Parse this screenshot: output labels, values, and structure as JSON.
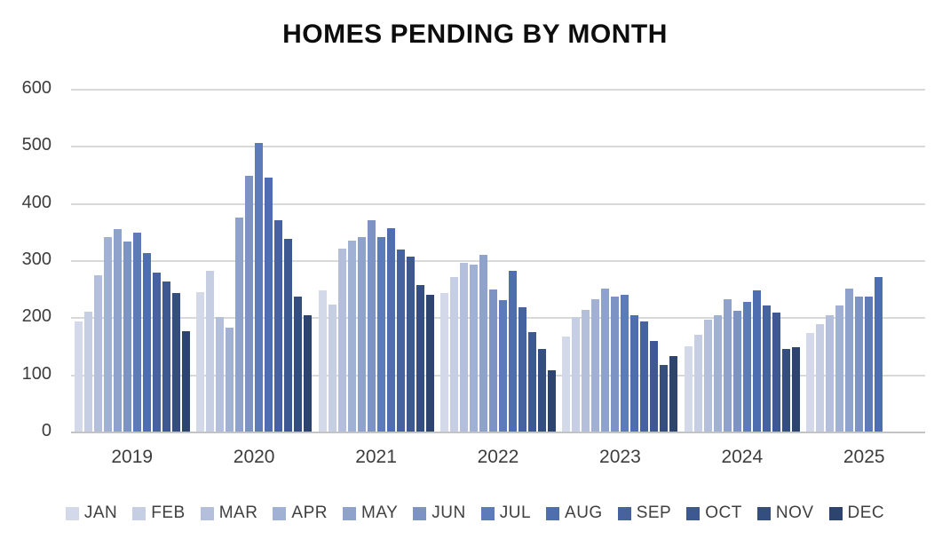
{
  "title": "HOMES PENDING BY MONTH",
  "chart_data": {
    "type": "bar",
    "title": "HOMES PENDING BY MONTH",
    "xlabel": "",
    "ylabel": "",
    "ylim": [
      0,
      600
    ],
    "yticks": [
      0,
      100,
      200,
      300,
      400,
      500,
      600
    ],
    "grid": true,
    "legend_position": "bottom",
    "gridline_color": "#d9d9d9",
    "axis_text_color": "#3d3d3d",
    "categories": [
      "2019",
      "2020",
      "2021",
      "2022",
      "2023",
      "2024",
      "2025"
    ],
    "series": [
      {
        "name": "JAN",
        "color": "#d3d9e8",
        "values": [
          193,
          244,
          247,
          243,
          167,
          149,
          172
        ]
      },
      {
        "name": "FEB",
        "color": "#c6cee3",
        "values": [
          210,
          282,
          223,
          271,
          201,
          169,
          188
        ]
      },
      {
        "name": "MAR",
        "color": "#b3bfdb",
        "values": [
          273,
          200,
          321,
          296,
          213,
          196,
          203
        ]
      },
      {
        "name": "APR",
        "color": "#a1b1d4",
        "values": [
          340,
          182,
          334,
          293,
          231,
          204,
          221
        ]
      },
      {
        "name": "MAY",
        "color": "#8fa2cb",
        "values": [
          354,
          374,
          341,
          309,
          250,
          231,
          251
        ]
      },
      {
        "name": "JUN",
        "color": "#7d93c4",
        "values": [
          332,
          447,
          370,
          249,
          237,
          211,
          236
        ]
      },
      {
        "name": "JUL",
        "color": "#5d7bb9",
        "values": [
          348,
          505,
          341,
          230,
          239,
          227,
          236
        ]
      },
      {
        "name": "AUG",
        "color": "#4f6eb0",
        "values": [
          313,
          444,
          356,
          281,
          204,
          247,
          271
        ]
      },
      {
        "name": "SEP",
        "color": "#46639f",
        "values": [
          278,
          370,
          319,
          217,
          192,
          221,
          null
        ]
      },
      {
        "name": "OCT",
        "color": "#3e5991",
        "values": [
          262,
          338,
          307,
          174,
          159,
          208,
          null
        ]
      },
      {
        "name": "NOV",
        "color": "#354e80",
        "values": [
          243,
          237,
          257,
          144,
          116,
          145,
          null
        ]
      },
      {
        "name": "DEC",
        "color": "#2d456e",
        "values": [
          176,
          204,
          240,
          107,
          132,
          147,
          null
        ]
      }
    ]
  }
}
